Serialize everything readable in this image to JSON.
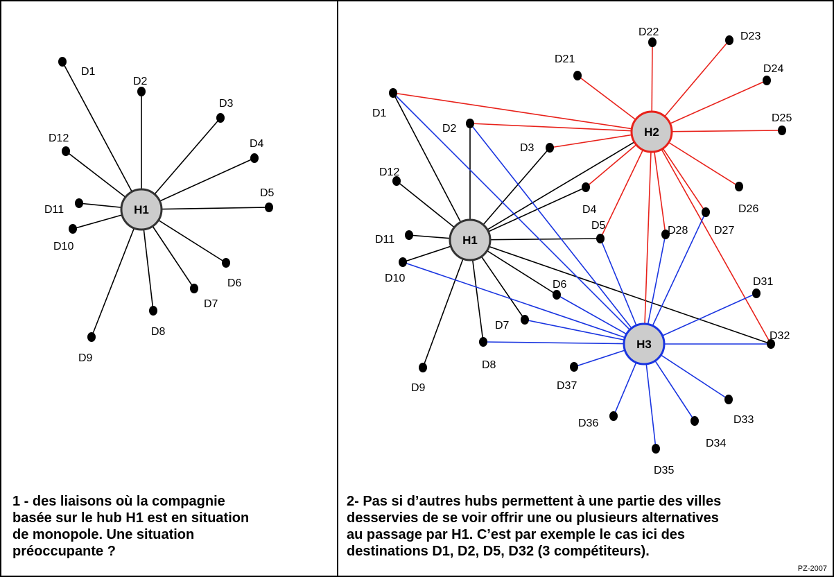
{
  "left_panel": {
    "caption_lines": [
      "1 - des liaisons où la compagnie",
      "basée sur le hub H1 est en situation",
      "de monopole. Une situation",
      "préoccupante  ?"
    ],
    "hubs": [
      {
        "id": "H1",
        "label": "H1",
        "ring_color": "#333333"
      }
    ],
    "nodes": [
      {
        "id": "D1",
        "label": "D1"
      },
      {
        "id": "D2",
        "label": "D2"
      },
      {
        "id": "D3",
        "label": "D3"
      },
      {
        "id": "D4",
        "label": "D4"
      },
      {
        "id": "D5",
        "label": "D5"
      },
      {
        "id": "D6",
        "label": "D6"
      },
      {
        "id": "D7",
        "label": "D7"
      },
      {
        "id": "D8",
        "label": "D8"
      },
      {
        "id": "D9",
        "label": "D9"
      },
      {
        "id": "D10",
        "label": "D10"
      },
      {
        "id": "D11",
        "label": "D11"
      },
      {
        "id": "D12",
        "label": "D12"
      }
    ],
    "edges": [
      [
        "H1",
        "D1"
      ],
      [
        "H1",
        "D2"
      ],
      [
        "H1",
        "D3"
      ],
      [
        "H1",
        "D4"
      ],
      [
        "H1",
        "D5"
      ],
      [
        "H1",
        "D6"
      ],
      [
        "H1",
        "D7"
      ],
      [
        "H1",
        "D8"
      ],
      [
        "H1",
        "D9"
      ],
      [
        "H1",
        "D10"
      ],
      [
        "H1",
        "D11"
      ],
      [
        "H1",
        "D12"
      ]
    ]
  },
  "right_panel": {
    "caption_lines": [
      "2-  Pas si d’autres hubs permettent à une partie des villes",
      "desservies de se voir offrir une ou plusieurs alternatives",
      "au passage par H1. C’est par exemple le cas ici des",
      "destinations D1, D2, D5, D32 (3 compétiteurs)."
    ],
    "hubs": [
      {
        "id": "H1",
        "label": "H1",
        "ring_color": "#333333"
      },
      {
        "id": "H2",
        "label": "H2",
        "ring_color": "#e8221b"
      },
      {
        "id": "H3",
        "label": "H3",
        "ring_color": "#1a35e0"
      }
    ],
    "nodes": [
      {
        "id": "D1",
        "label": "D1"
      },
      {
        "id": "D2",
        "label": "D2"
      },
      {
        "id": "D3",
        "label": "D3"
      },
      {
        "id": "D4",
        "label": "D4"
      },
      {
        "id": "D5",
        "label": "D5"
      },
      {
        "id": "D6",
        "label": "D6"
      },
      {
        "id": "D7",
        "label": "D7"
      },
      {
        "id": "D8",
        "label": "D8"
      },
      {
        "id": "D9",
        "label": "D9"
      },
      {
        "id": "D10",
        "label": "D10"
      },
      {
        "id": "D11",
        "label": "D11"
      },
      {
        "id": "D12",
        "label": "D12"
      },
      {
        "id": "D21",
        "label": "D21"
      },
      {
        "id": "D22",
        "label": "D22"
      },
      {
        "id": "D23",
        "label": "D23"
      },
      {
        "id": "D24",
        "label": "D24"
      },
      {
        "id": "D25",
        "label": "D25"
      },
      {
        "id": "D26",
        "label": "D26"
      },
      {
        "id": "D27",
        "label": "D27"
      },
      {
        "id": "D28",
        "label": "D28"
      },
      {
        "id": "D31",
        "label": "D31"
      },
      {
        "id": "D32",
        "label": "D32"
      },
      {
        "id": "D33",
        "label": "D33"
      },
      {
        "id": "D34",
        "label": "D34"
      },
      {
        "id": "D35",
        "label": "D35"
      },
      {
        "id": "D36",
        "label": "D36"
      },
      {
        "id": "D37",
        "label": "D37"
      }
    ],
    "edge_colors": {
      "H1": "#000000",
      "H2": "#e8221b",
      "H3": "#1a35e0"
    },
    "edges": [
      [
        "H1",
        "D1"
      ],
      [
        "H1",
        "D2"
      ],
      [
        "H1",
        "D3"
      ],
      [
        "H1",
        "D4"
      ],
      [
        "H1",
        "D5"
      ],
      [
        "H1",
        "D6"
      ],
      [
        "H1",
        "D7"
      ],
      [
        "H1",
        "D8"
      ],
      [
        "H1",
        "D9"
      ],
      [
        "H1",
        "D10"
      ],
      [
        "H1",
        "D11"
      ],
      [
        "H1",
        "D12"
      ],
      [
        "H1",
        "H2"
      ],
      [
        "H1",
        "D32"
      ],
      [
        "H2",
        "D1"
      ],
      [
        "H2",
        "D2"
      ],
      [
        "H2",
        "D3"
      ],
      [
        "H2",
        "D4"
      ],
      [
        "H2",
        "D5"
      ],
      [
        "H2",
        "D21"
      ],
      [
        "H2",
        "D22"
      ],
      [
        "H2",
        "D23"
      ],
      [
        "H2",
        "D24"
      ],
      [
        "H2",
        "D25"
      ],
      [
        "H2",
        "D26"
      ],
      [
        "H2",
        "D27"
      ],
      [
        "H2",
        "D28"
      ],
      [
        "H2",
        "D32"
      ],
      [
        "H2",
        "H3"
      ],
      [
        "H3",
        "D1"
      ],
      [
        "H3",
        "D2"
      ],
      [
        "H3",
        "D5"
      ],
      [
        "H3",
        "D6"
      ],
      [
        "H3",
        "D7"
      ],
      [
        "H3",
        "D8"
      ],
      [
        "H3",
        "D10"
      ],
      [
        "H3",
        "D27"
      ],
      [
        "H3",
        "D28"
      ],
      [
        "H3",
        "D31"
      ],
      [
        "H3",
        "D32"
      ],
      [
        "H3",
        "D33"
      ],
      [
        "H3",
        "D34"
      ],
      [
        "H3",
        "D35"
      ],
      [
        "H3",
        "D36"
      ],
      [
        "H3",
        "D37"
      ]
    ]
  },
  "credit": "PZ-2007"
}
